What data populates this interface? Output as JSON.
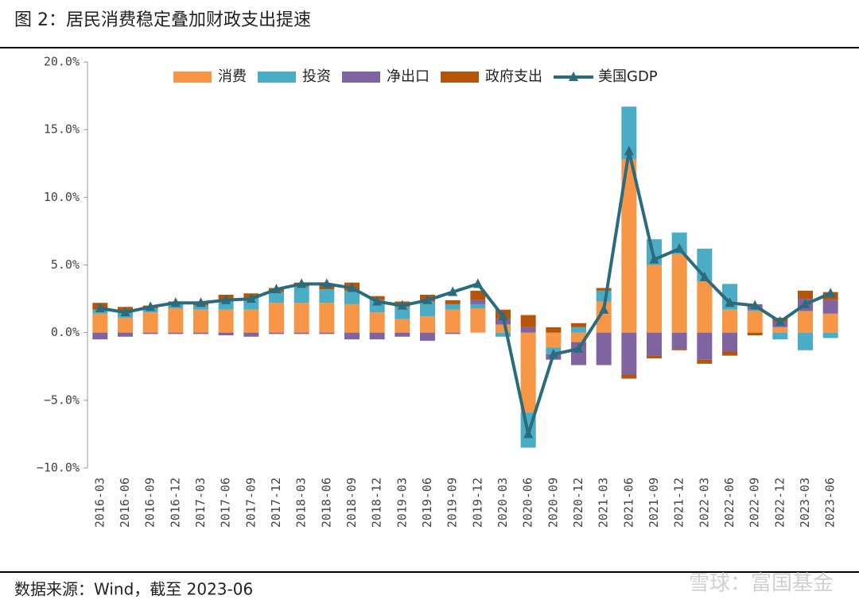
{
  "chart_data": {
    "type": "bar-line",
    "title": "图 2：居民消费稳定叠加财政支出提速",
    "source": "数据来源：Wind，截至 2023-06",
    "watermark": "雪球：富国基金",
    "categories": [
      "2016-03",
      "2016-06",
      "2016-09",
      "2016-12",
      "2017-03",
      "2017-06",
      "2017-09",
      "2017-12",
      "2018-03",
      "2018-06",
      "2018-09",
      "2018-12",
      "2019-03",
      "2019-06",
      "2019-09",
      "2019-12",
      "2020-03",
      "2020-06",
      "2020-09",
      "2020-12",
      "2021-03",
      "2021-06",
      "2021-09",
      "2021-12",
      "2022-03",
      "2022-06",
      "2022-09",
      "2022-12",
      "2023-03",
      "2023-06"
    ],
    "series": [
      {
        "name": "消费",
        "type": "bar",
        "color": "#f79646",
        "values": [
          1.4,
          1.1,
          1.5,
          1.8,
          1.7,
          1.7,
          1.7,
          2.2,
          2.2,
          2.2,
          2.1,
          1.5,
          1.0,
          1.2,
          1.7,
          1.8,
          0.6,
          -5.9,
          -1.1,
          -0.7,
          2.3,
          12.8,
          5.0,
          5.8,
          3.8,
          1.7,
          1.6,
          0.4,
          1.6,
          1.4
        ]
      },
      {
        "name": "投资",
        "type": "bar",
        "color": "#4bacc6",
        "values": [
          0.3,
          0.4,
          0.3,
          0.3,
          0.3,
          0.7,
          0.9,
          0.8,
          1.2,
          1.0,
          1.0,
          0.9,
          0.9,
          1.1,
          0.4,
          0.3,
          -0.3,
          -2.6,
          -0.5,
          0.4,
          0.8,
          3.9,
          1.9,
          1.6,
          2.4,
          1.9,
          0.1,
          -0.5,
          -1.3,
          -0.4
        ]
      },
      {
        "name": "净出口",
        "type": "bar",
        "color": "#8064a2",
        "values": [
          -0.5,
          -0.3,
          -0.1,
          -0.1,
          -0.1,
          -0.2,
          -0.3,
          -0.1,
          -0.1,
          -0.1,
          -0.5,
          -0.5,
          -0.3,
          -0.6,
          -0.1,
          0.3,
          0.4,
          0.4,
          -0.4,
          -1.7,
          -2.4,
          -3.1,
          -1.7,
          -1.2,
          -2.0,
          -1.4,
          0.4,
          0.4,
          0.9,
          1.0
        ]
      },
      {
        "name": "政府支出",
        "type": "bar",
        "color": "#b4550c",
        "values": [
          0.5,
          0.4,
          0.2,
          0.2,
          0.3,
          0.4,
          0.3,
          0.3,
          0.3,
          0.4,
          0.6,
          0.3,
          0.4,
          0.5,
          0.3,
          0.7,
          0.7,
          0.9,
          0.4,
          0.3,
          0.2,
          -0.3,
          -0.2,
          -0.1,
          -0.3,
          -0.3,
          -0.2,
          0.3,
          0.6,
          0.6
        ]
      },
      {
        "name": "美国GDP",
        "type": "line",
        "color": "#2a6b7c",
        "values": [
          1.8,
          1.5,
          1.9,
          2.2,
          2.2,
          2.4,
          2.5,
          3.2,
          3.6,
          3.6,
          3.3,
          2.3,
          2.0,
          2.4,
          3.0,
          3.6,
          1.2,
          -7.5,
          -1.6,
          -1.2,
          1.7,
          13.4,
          5.4,
          6.2,
          4.1,
          2.2,
          2.0,
          0.8,
          2.1,
          2.9
        ]
      }
    ],
    "ylim": [
      -10,
      20
    ],
    "yticks": [
      {
        "value": -10,
        "label": "−10.0%"
      },
      {
        "value": -5,
        "label": "−5.0%"
      },
      {
        "value": 0,
        "label": "0.0%"
      },
      {
        "value": 5,
        "label": "5.0%"
      },
      {
        "value": 10,
        "label": "10.0%"
      },
      {
        "value": 15,
        "label": "15.0%"
      },
      {
        "value": 20,
        "label": "20.0%"
      }
    ],
    "legend": "top"
  }
}
